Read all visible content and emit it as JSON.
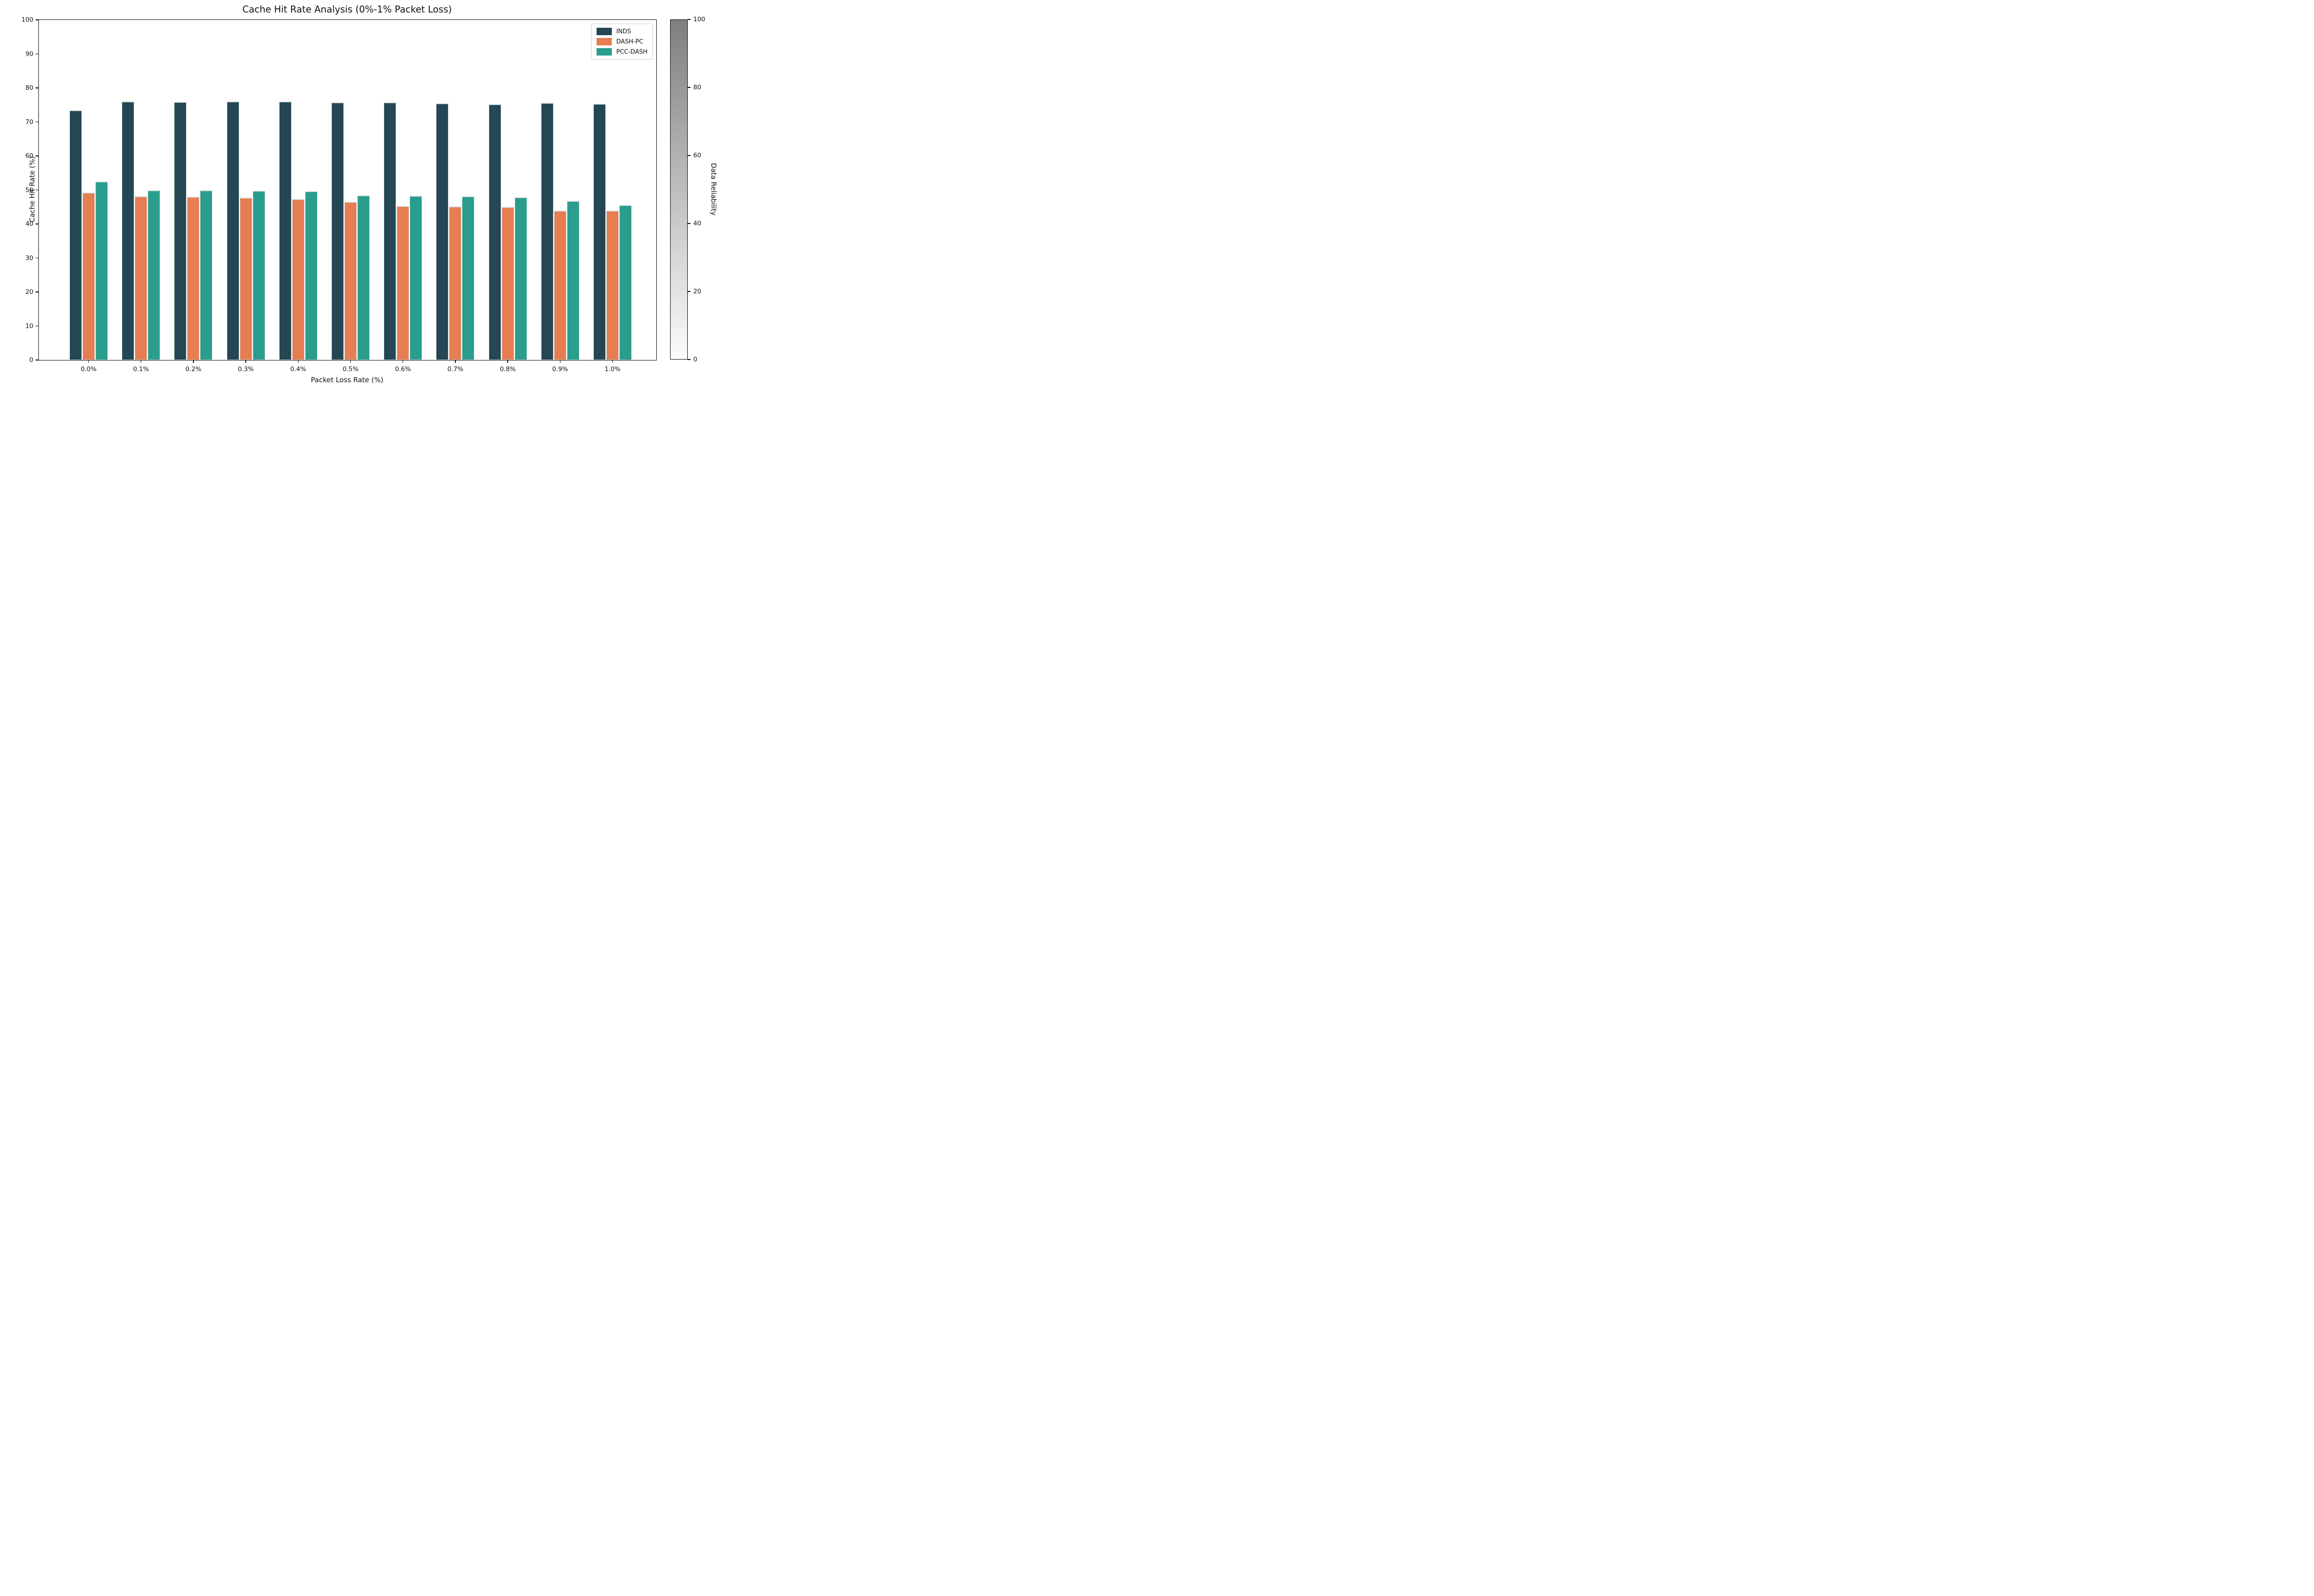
{
  "title": "Cache Hit Rate Analysis (0%-1% Packet Loss)",
  "colorbar": {
    "label": "Data Reliability",
    "min": 0,
    "max": 100,
    "ticks": [
      0,
      20,
      40,
      60,
      80,
      100
    ],
    "gradient_top": "#7f7f7f",
    "gradient_bottom": "#fcfcfc"
  },
  "chart_data": {
    "type": "bar",
    "title": "Cache Hit Rate Analysis (0%-1% Packet Loss)",
    "xlabel": "Packet Loss Rate (%)",
    "ylabel": "Cache Hit Rate (%)",
    "ylim": [
      0,
      100
    ],
    "yticks": [
      0,
      10,
      20,
      30,
      40,
      50,
      60,
      70,
      80,
      90,
      100
    ],
    "grid": false,
    "legend_position": "upper right",
    "categories": [
      "0.0%",
      "0.1%",
      "0.2%",
      "0.3%",
      "0.4%",
      "0.5%",
      "0.6%",
      "0.7%",
      "0.8%",
      "0.9%",
      "1.0%"
    ],
    "series": [
      {
        "name": "INDS",
        "color": "#254754",
        "values": [
          73.5,
          76.1,
          75.9,
          76.0,
          76.0,
          75.8,
          75.8,
          75.5,
          75.3,
          75.6,
          75.4
        ]
      },
      {
        "name": "DASH-PC",
        "color": "#e77d53",
        "values": [
          49.3,
          48.1,
          48.0,
          47.8,
          47.3,
          46.6,
          45.3,
          45.2,
          45.1,
          44.0,
          43.9
        ]
      },
      {
        "name": "PCC-DASH",
        "color": "#2a9d8d",
        "values": [
          52.5,
          50.0,
          49.9,
          49.8,
          49.7,
          48.5,
          48.3,
          48.1,
          47.9,
          46.8,
          45.6
        ]
      }
    ]
  }
}
